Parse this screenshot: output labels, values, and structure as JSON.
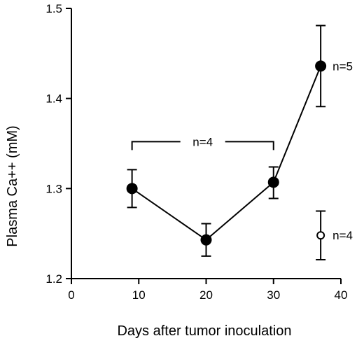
{
  "chart_data": {
    "type": "line",
    "title": "",
    "xlabel": "Days after tumor inoculation",
    "ylabel": "Plasma Ca++  (mM)",
    "xlim": [
      0,
      40
    ],
    "ylim": [
      1.2,
      1.5
    ],
    "xticks": [
      0,
      10,
      20,
      30,
      40
    ],
    "yticks": [
      1.2,
      1.3,
      1.4,
      1.5
    ],
    "xtick_labels": [
      "0",
      "10",
      "20",
      "30",
      "40"
    ],
    "ytick_labels": [
      "1.2",
      "1.3",
      "1.4",
      "1.5"
    ],
    "grid": false,
    "legend": "none",
    "series": [
      {
        "marker": "filled-circle",
        "connected": true,
        "x": [
          9,
          20,
          30,
          37
        ],
        "y": [
          1.3,
          1.243,
          1.307,
          1.436
        ],
        "err_low": [
          1.279,
          1.225,
          1.289,
          1.391
        ],
        "err_high": [
          1.321,
          1.261,
          1.324,
          1.481
        ]
      },
      {
        "marker": "open-circle",
        "connected": false,
        "x": [
          37
        ],
        "y": [
          1.248
        ],
        "err_low": [
          1.221
        ],
        "err_high": [
          1.275
        ]
      }
    ],
    "annotations": [
      {
        "text": "n=4",
        "kind": "bracket",
        "x_from": 9,
        "x_to": 30,
        "y": 1.352
      },
      {
        "text": "n=5",
        "kind": "label",
        "x": 37,
        "y": 1.436
      },
      {
        "text": "n=4",
        "kind": "label",
        "x": 37,
        "y": 1.248
      }
    ]
  }
}
